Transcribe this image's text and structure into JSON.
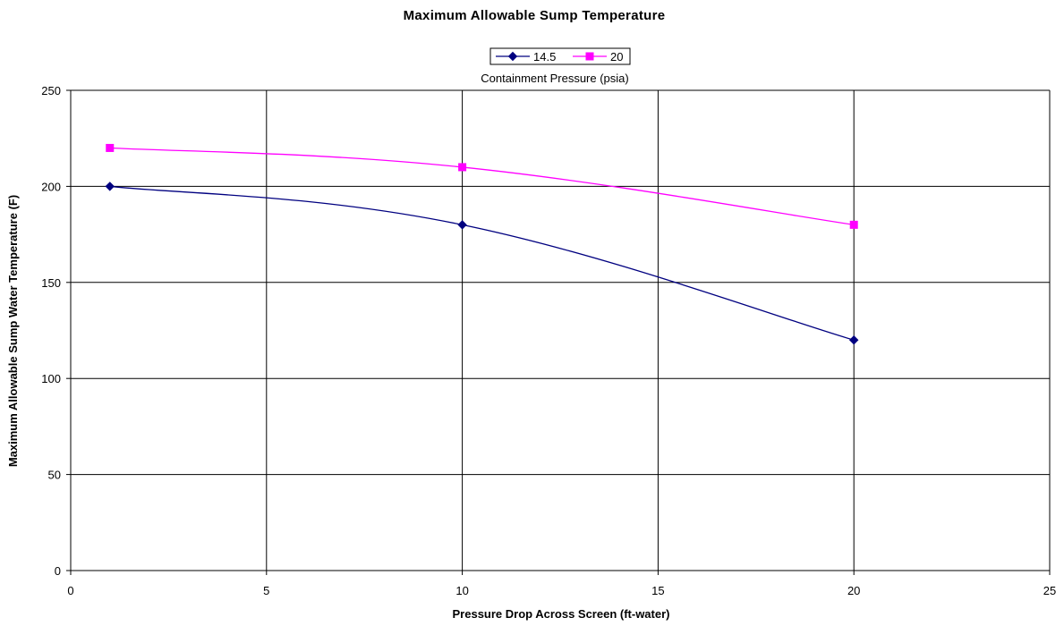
{
  "chart_data": {
    "type": "line",
    "title": "Maximum Allowable Sump Temperature",
    "xlabel": "Pressure Drop Across Screen (ft-water)",
    "ylabel": "Maximum Allowable Sump Water Temperature (F)",
    "xlim": [
      0,
      25
    ],
    "ylim": [
      0,
      250
    ],
    "xticks": [
      0,
      5,
      10,
      15,
      20,
      25
    ],
    "yticks": [
      0,
      50,
      100,
      150,
      200,
      250
    ],
    "grid": true,
    "smooth": true,
    "legend": {
      "placement": "top-center",
      "title": "Containment Pressure (psia)"
    },
    "series": [
      {
        "name": "14.5",
        "color": "#000080",
        "marker": "diamond",
        "x": [
          1,
          10,
          20
        ],
        "y": [
          200,
          180,
          120
        ]
      },
      {
        "name": "20",
        "color": "#ff00ff",
        "marker": "square",
        "x": [
          1,
          10,
          20
        ],
        "y": [
          220,
          210,
          180
        ]
      }
    ]
  }
}
